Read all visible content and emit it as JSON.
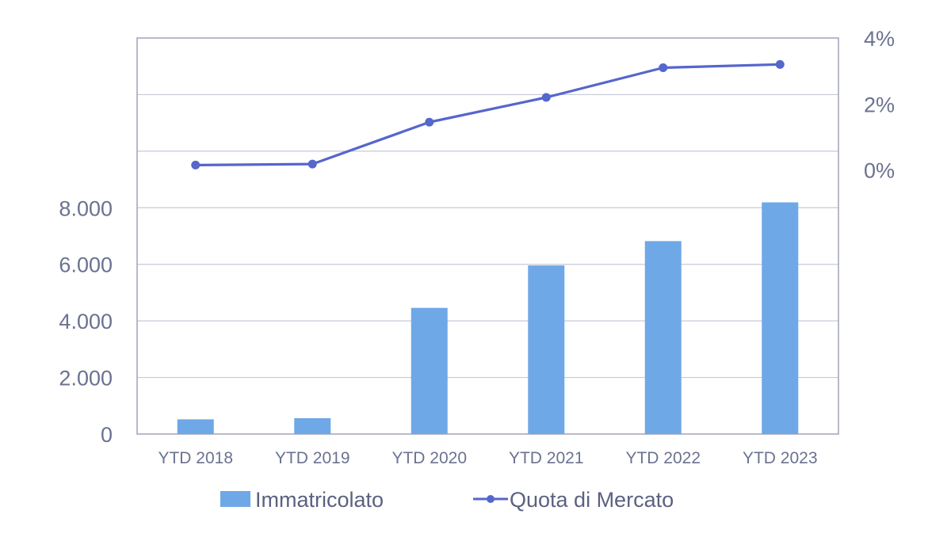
{
  "chart_data": {
    "type": "bar",
    "categories": [
      "YTD 2018",
      "YTD 2019",
      "YTD 2020",
      "YTD 2021",
      "YTD 2022",
      "YTD 2023"
    ],
    "series": [
      {
        "name": "Immatricolato",
        "type": "bar",
        "axis": "left",
        "values": [
          520,
          560,
          4460,
          5960,
          6820,
          8190
        ]
      },
      {
        "name": "Quota di Mercato",
        "type": "line",
        "axis": "right",
        "values": [
          0.15,
          0.18,
          1.45,
          2.2,
          3.1,
          3.2
        ]
      }
    ],
    "y_left": {
      "ticks": [
        "0",
        "2.000",
        "4.000",
        "6.000",
        "8.000"
      ],
      "range": [
        0,
        14000
      ]
    },
    "y_right": {
      "ticks": [
        "0%",
        "2%",
        "4%"
      ],
      "range": [
        -8,
        4
      ]
    },
    "grid": true,
    "legend": "bottom",
    "colors": {
      "bar": "#6ea8e6",
      "line": "#5566cc",
      "grid": "#c6c9da",
      "axis": "#9a9db5",
      "tick_text": "#6b7290"
    }
  }
}
